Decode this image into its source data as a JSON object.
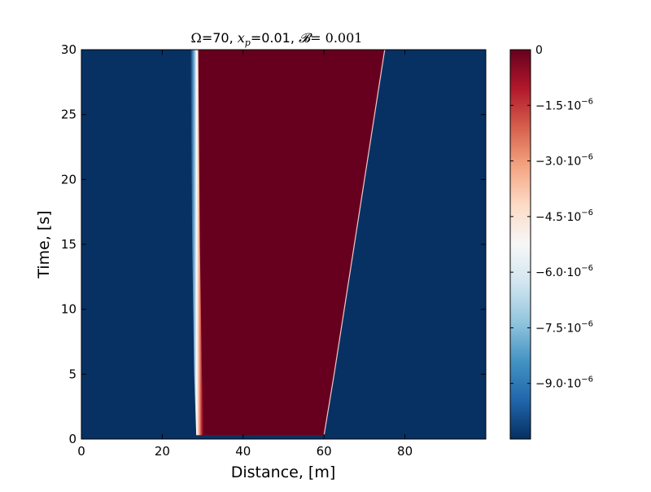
{
  "chart_data": {
    "type": "heatmap",
    "title": {
      "omega_symbol": "Ω",
      "omega_value": "=70, ",
      "xp_symbol": "x",
      "xp_sub": "p",
      "xp_value": "=0.01, ",
      "b_symbol": "𝓑",
      "b_value": "= 0.001"
    },
    "xlabel": "Distance, [m]",
    "ylabel": "Time, [s]",
    "xlim": [
      0,
      100
    ],
    "ylim": [
      0,
      30
    ],
    "x_ticks": [
      0,
      20,
      40,
      60,
      80
    ],
    "y_ticks": [
      0,
      5,
      10,
      15,
      20,
      25,
      30
    ],
    "colorscale": "RdBu_r",
    "colormap_colors": [
      "#053061",
      "#2166ac",
      "#4393c3",
      "#92c5de",
      "#d1e5f0",
      "#f7f7f7",
      "#fddbc7",
      "#f4a582",
      "#d6604d",
      "#b2182b",
      "#67001f"
    ],
    "value_range": [
      -1.05e-05,
      0
    ],
    "colorbar_ticks": [
      {
        "value": 0,
        "mantissa": "0",
        "exp": ""
      },
      {
        "value": -1.5e-06,
        "mantissa": "−1.5·10",
        "exp": "−6"
      },
      {
        "value": -3e-06,
        "mantissa": "−3.0·10",
        "exp": "−6"
      },
      {
        "value": -4.5e-06,
        "mantissa": "−4.5·10",
        "exp": "−6"
      },
      {
        "value": -6e-06,
        "mantissa": "−6.0·10",
        "exp": "−6"
      },
      {
        "value": -7.5e-06,
        "mantissa": "−7.5·10",
        "exp": "−6"
      },
      {
        "value": -9e-06,
        "mantissa": "−9.0·10",
        "exp": "−6"
      }
    ],
    "regions": {
      "background_value": -1.05e-05,
      "band_value": 0,
      "band_start": 0.3,
      "left_edge": [
        [
          30,
          0.3
        ],
        [
          29.5,
          5
        ],
        [
          29,
          15
        ],
        [
          28.6,
          30
        ]
      ],
      "right_edge": [
        [
          60,
          0.3
        ],
        [
          62.5,
          5
        ],
        [
          67.5,
          15
        ],
        [
          75,
          30
        ]
      ]
    }
  }
}
